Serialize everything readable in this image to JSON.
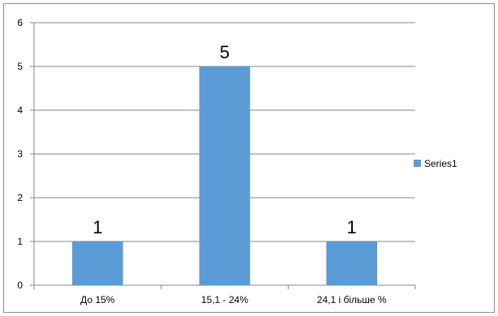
{
  "chart_data": {
    "type": "bar",
    "categories": [
      "До 15%",
      "15,1 - 24%",
      "24,1 і більше %"
    ],
    "series": [
      {
        "name": "Series1",
        "values": [
          1,
          5,
          1
        ]
      }
    ],
    "data_labels": [
      "1",
      "5",
      "1"
    ],
    "ylim": [
      0,
      6
    ],
    "yticks": [
      "0",
      "1",
      "2",
      "3",
      "4",
      "5",
      "6"
    ],
    "grid": true,
    "legend_position": "right",
    "bar_color": "#5b9bd5",
    "grid_color": "#868686"
  }
}
